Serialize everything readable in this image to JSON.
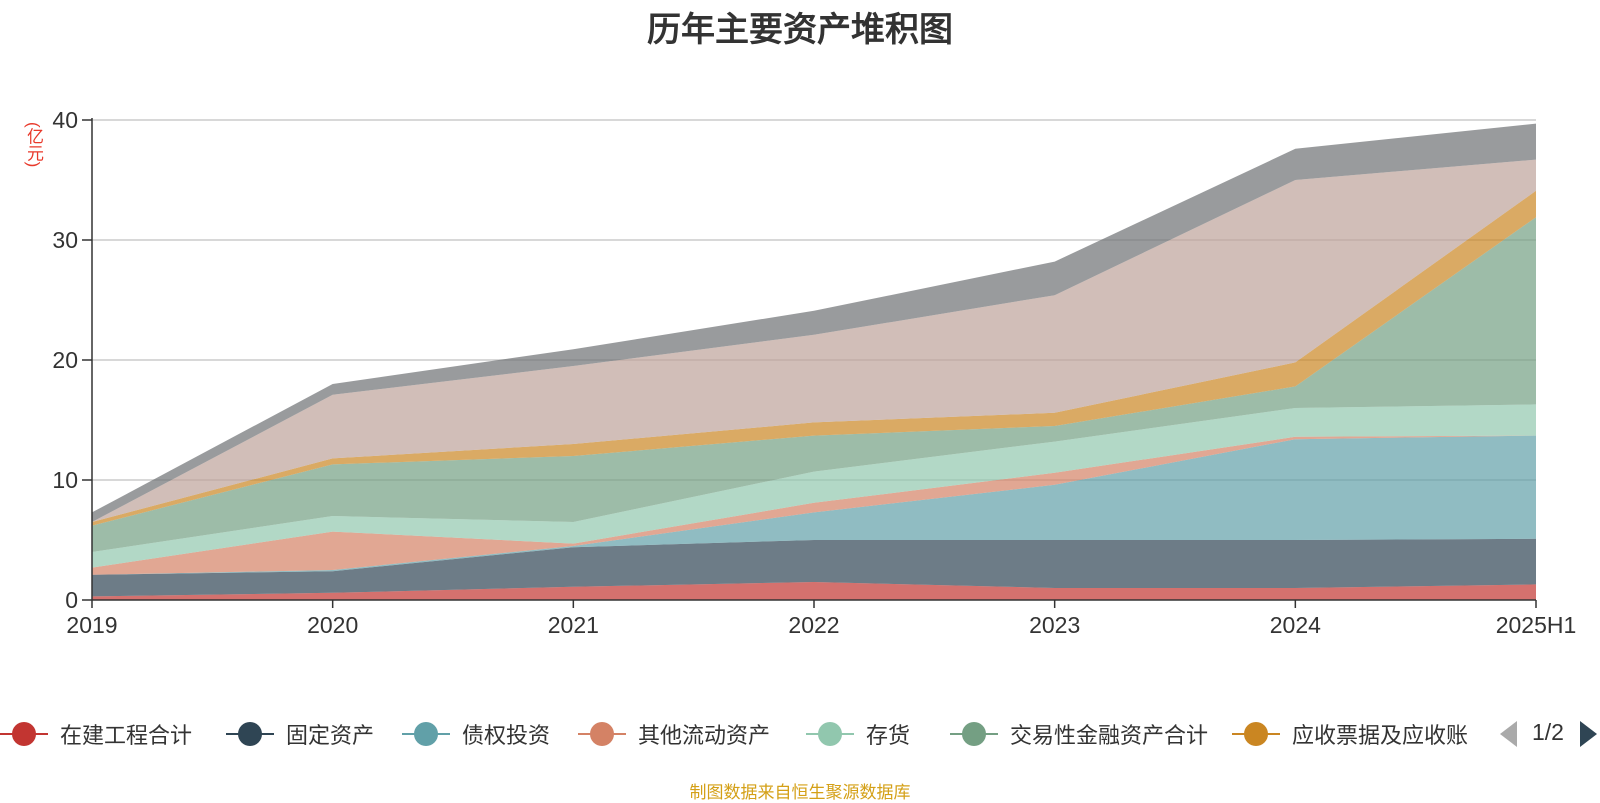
{
  "chart_data": {
    "type": "area",
    "stacked": true,
    "title": "历年主要资产堆积图",
    "ylabel": "(亿元)",
    "ylim": [
      0,
      40
    ],
    "yticks": [
      0,
      10,
      20,
      30,
      40
    ],
    "grid": true,
    "categories": [
      "2019",
      "2020",
      "2021",
      "2022",
      "2023",
      "2024",
      "2025H1"
    ],
    "series": [
      {
        "name": "在建工程合计",
        "color": "#c23531",
        "values": [
          0.3,
          0.6,
          1.1,
          1.5,
          1.0,
          1.0,
          1.3
        ]
      },
      {
        "name": "固定资产",
        "color": "#2f4554",
        "values": [
          1.8,
          1.8,
          3.3,
          3.5,
          4.0,
          4.0,
          3.8
        ]
      },
      {
        "name": "债权投资",
        "color": "#61a0a8",
        "values": [
          0.0,
          0.1,
          0.1,
          2.3,
          4.6,
          8.4,
          8.6
        ]
      },
      {
        "name": "其他流动资产",
        "color": "#d48265",
        "values": [
          0.6,
          3.2,
          0.2,
          0.8,
          1.0,
          0.2,
          0.0
        ]
      },
      {
        "name": "存货",
        "color": "#91c7ae",
        "values": [
          1.3,
          1.3,
          1.8,
          2.6,
          2.6,
          2.4,
          2.6
        ]
      },
      {
        "name": "交易性金融资产合计",
        "color": "#749f83",
        "values": [
          2.2,
          4.3,
          5.5,
          3.0,
          1.3,
          1.8,
          15.6
        ]
      },
      {
        "name": "应收票据及应收账",
        "color": "#ca8622",
        "values": [
          0.3,
          0.5,
          1.0,
          1.1,
          1.1,
          2.0,
          2.2
        ]
      },
      {
        "name": "",
        "color": "#bda29a",
        "values": [
          0.0,
          5.3,
          6.5,
          7.3,
          9.8,
          15.2,
          2.6
        ]
      },
      {
        "name": "",
        "color": "#6e7074",
        "values": [
          0.8,
          0.9,
          1.4,
          2.0,
          2.8,
          2.6,
          3.0
        ]
      }
    ],
    "legend_position": "bottom"
  },
  "legend": {
    "page_info": "1/2"
  },
  "footer": {
    "source": "制图数据来自恒生聚源数据库"
  }
}
